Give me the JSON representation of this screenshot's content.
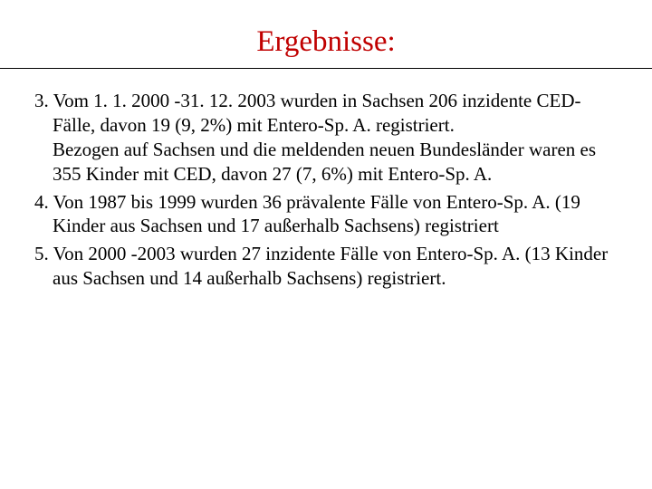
{
  "title": {
    "text": "Ergebnisse:",
    "color": "#c00000",
    "fontsize": 33
  },
  "rule": {
    "color": "#000000"
  },
  "body": {
    "fontsize": 21,
    "text_color": "#000000",
    "items": [
      {
        "num": "3.",
        "first": "Vom 1. 1. 2000 -31. 12. 2003 wurden in Sachsen 206 inzidente CED-Fälle, davon 19 (9, 2%) mit Entero-Sp. A. registriert.",
        "cont": "Bezogen auf Sachsen und die meldenden neuen Bundesländer waren es 355 Kinder mit CED, davon 27 (7, 6%) mit Entero-Sp. A."
      },
      {
        "num": "4.",
        "first": "Von 1987 bis 1999 wurden 36 prävalente Fälle von Entero-Sp. A. (19 Kinder aus Sachsen und 17 außerhalb Sachsens) registriert"
      },
      {
        "num": "5.",
        "first": "Von 2000 -2003 wurden 27 inzidente Fälle von Entero-Sp. A. (13 Kinder aus Sachsen und 14 außerhalb Sachsens) registriert."
      }
    ]
  }
}
